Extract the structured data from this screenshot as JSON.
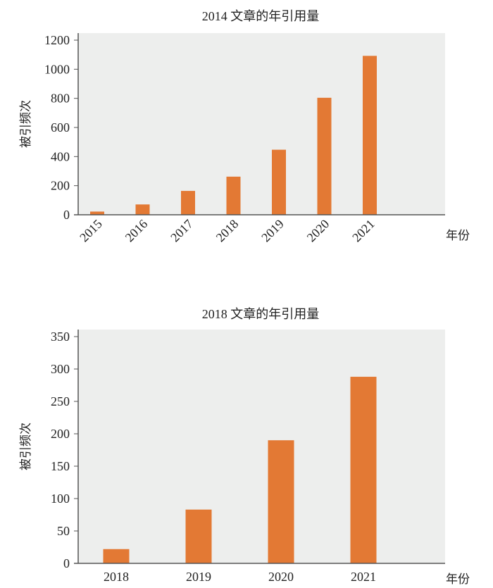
{
  "colors": {
    "bar": "#e37934",
    "plot_bg": "#edeeed",
    "axis": "#555555"
  },
  "chart_data": [
    {
      "type": "bar",
      "title": "2014 文章的年引用量",
      "xlabel": "年份",
      "ylabel": "被引频次",
      "categories": [
        "2015",
        "2016",
        "2017",
        "2018",
        "2019",
        "2020",
        "2021"
      ],
      "values": [
        22,
        71,
        164,
        262,
        447,
        804,
        1092
      ],
      "ylim": [
        0,
        1200
      ],
      "yticks": [
        0,
        200,
        400,
        600,
        800,
        1000,
        1200
      ],
      "xtick_rotation": -45,
      "grid": false
    },
    {
      "type": "bar",
      "title": "2018 文章的年引用量",
      "xlabel": "年份",
      "ylabel": "被引频次",
      "categories": [
        "2018",
        "2019",
        "2020",
        "2021"
      ],
      "values": [
        22,
        83,
        190,
        288
      ],
      "ylim": [
        0,
        350
      ],
      "yticks": [
        0,
        50,
        100,
        150,
        200,
        250,
        300,
        350
      ],
      "xtick_rotation": 0,
      "grid": false
    }
  ]
}
